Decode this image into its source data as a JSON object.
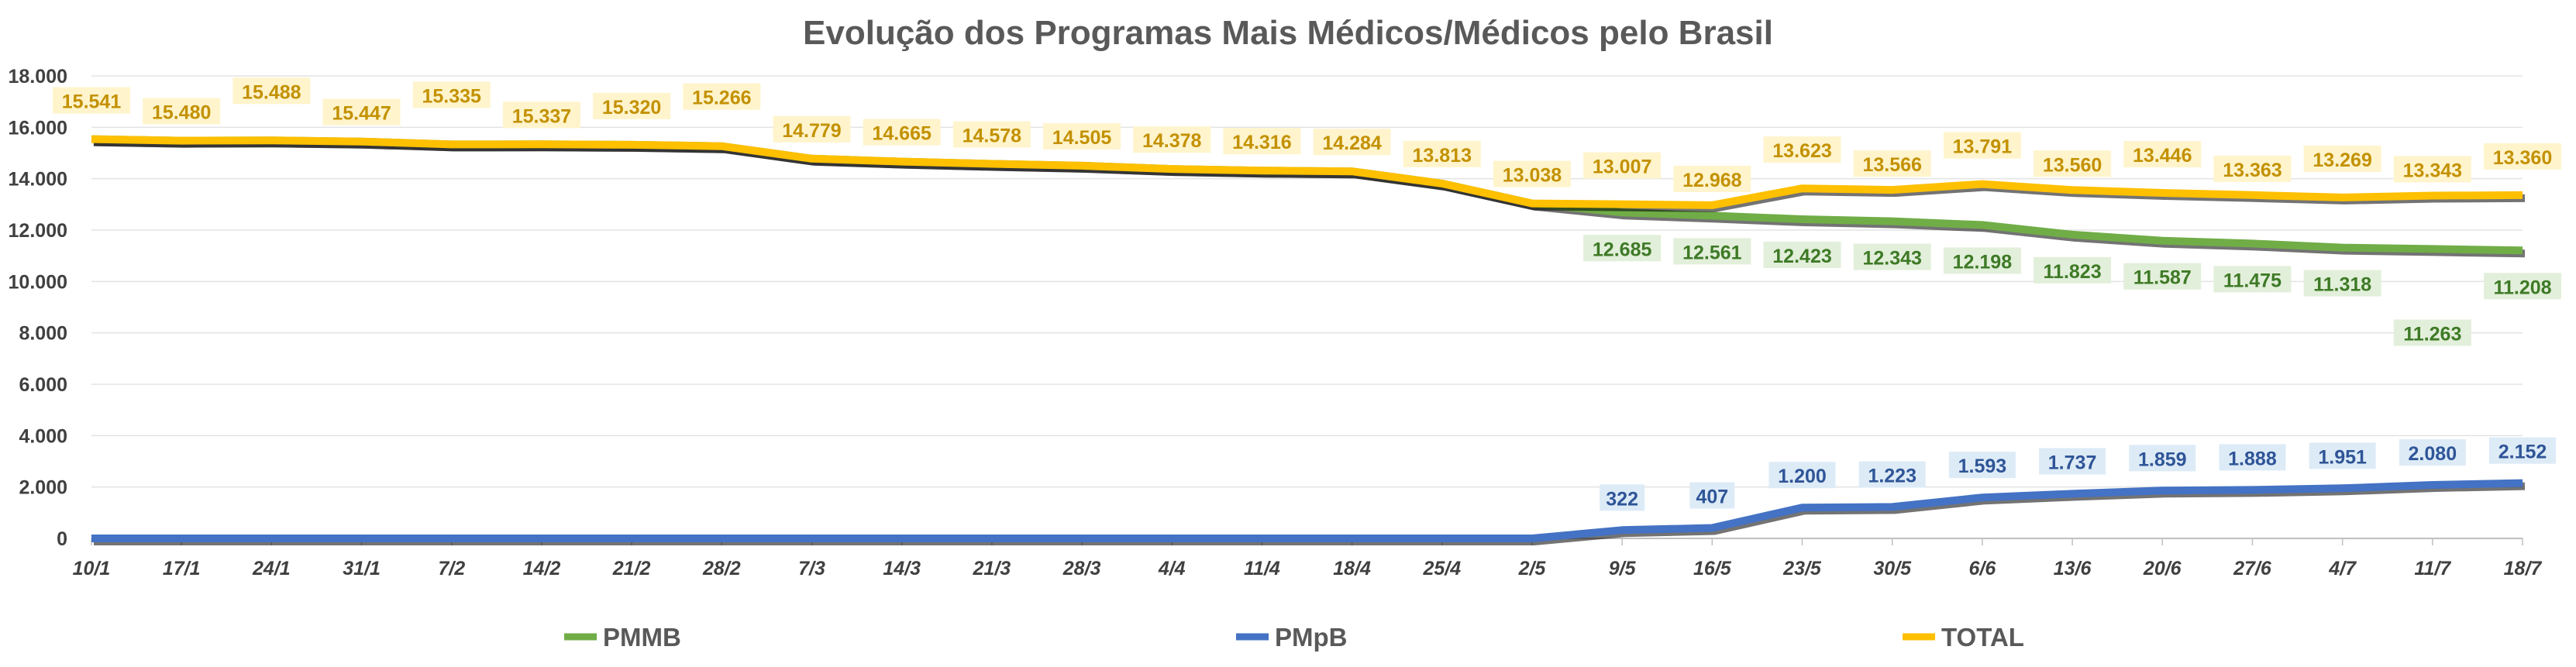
{
  "chart_data": {
    "type": "line",
    "title": "Evolução dos Programas Mais Médicos/Médicos pelo Brasil",
    "x": [
      "10/1",
      "17/1",
      "24/1",
      "31/1",
      "7/2",
      "14/2",
      "21/2",
      "28/2",
      "7/3",
      "14/3",
      "21/3",
      "28/3",
      "4/4",
      "11/4",
      "18/4",
      "25/4",
      "2/5",
      "9/5",
      "16/5",
      "23/5",
      "30/5",
      "6/6",
      "13/6",
      "20/6",
      "27/6",
      "4/7",
      "11/7",
      "18/7"
    ],
    "ylim": [
      0,
      18000
    ],
    "yticks": [
      0,
      2000,
      4000,
      6000,
      8000,
      10000,
      12000,
      14000,
      16000,
      18000
    ],
    "ytick_labels": [
      "0",
      "2.000",
      "4.000",
      "6.000",
      "8.000",
      "10.000",
      "12.000",
      "14.000",
      "16.000",
      "18.000"
    ],
    "grid": true,
    "legend_position": "bottom",
    "series": [
      {
        "name": "PMMB",
        "color": "#70AD47",
        "values": [
          15541,
          15480,
          15488,
          15447,
          15335,
          15337,
          15320,
          15266,
          14779,
          14665,
          14578,
          14505,
          14378,
          14316,
          14284,
          13813,
          13038,
          12685,
          12561,
          12423,
          12343,
          12198,
          11823,
          11587,
          11475,
          11318,
          11263,
          11208
        ],
        "labels": [
          null,
          null,
          null,
          null,
          null,
          null,
          null,
          null,
          null,
          null,
          null,
          null,
          null,
          null,
          null,
          null,
          null,
          "12.685",
          "12.561",
          "12.423",
          "12.343",
          "12.198",
          "11.823",
          "11.587",
          "11.475",
          "11.318",
          "11.263",
          "11.208"
        ]
      },
      {
        "name": "PMpB",
        "color": "#4472C4",
        "values": [
          0,
          0,
          0,
          0,
          0,
          0,
          0,
          0,
          0,
          0,
          0,
          0,
          0,
          0,
          0,
          0,
          0,
          322,
          407,
          1200,
          1223,
          1593,
          1737,
          1859,
          1888,
          1951,
          2080,
          2152
        ],
        "labels": [
          null,
          null,
          null,
          null,
          null,
          null,
          null,
          null,
          null,
          null,
          null,
          null,
          null,
          null,
          null,
          null,
          null,
          "322",
          "407",
          "1.200",
          "1.223",
          "1.593",
          "1.737",
          "1.859",
          "1.888",
          "1.951",
          "2.080",
          "2.152"
        ]
      },
      {
        "name": "TOTAL",
        "color": "#FFC000",
        "values": [
          15541,
          15480,
          15488,
          15447,
          15335,
          15337,
          15320,
          15266,
          14779,
          14665,
          14578,
          14505,
          14378,
          14316,
          14284,
          13813,
          13038,
          13007,
          12968,
          13623,
          13566,
          13791,
          13560,
          13446,
          13363,
          13269,
          13343,
          13360
        ],
        "labels": [
          "15.541",
          "15.480",
          "15.488",
          "15.447",
          "15.335",
          "15.337",
          "15.320",
          "15.266",
          "14.779",
          "14.665",
          "14.578",
          "14.505",
          "14.378",
          "14.316",
          "14.284",
          "13.813",
          "13.038",
          "13.007",
          "12.968",
          "13.623",
          "13.566",
          "13.791",
          "13.560",
          "13.446",
          "13.363",
          "13.269",
          "13.343",
          "13.360"
        ]
      }
    ]
  }
}
